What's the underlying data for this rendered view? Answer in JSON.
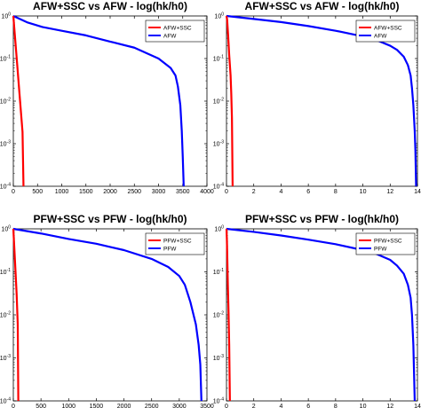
{
  "chart_data": [
    {
      "type": "line",
      "title": "AFW+SSC vs AFW - log(hk/h0)",
      "xlabel": "",
      "ylabel": "",
      "xlim": [
        0,
        4000
      ],
      "ylim": [
        0.0001,
        1
      ],
      "yscale": "log",
      "xticks": [
        0,
        500,
        1000,
        1500,
        2000,
        2500,
        3000,
        3500,
        4000
      ],
      "xtick_labels": [
        "0",
        "500",
        "1000",
        "1500",
        "2000",
        "2500",
        "3000",
        "3500",
        "4000"
      ],
      "yticks": [
        1,
        0.1,
        0.01,
        0.001,
        0.0001
      ],
      "ytick_labels": [
        "10^0",
        "10^-1",
        "10^-2",
        "10^-3",
        "10^-4"
      ],
      "legend_position": "top-right",
      "grid": false,
      "series": [
        {
          "name": "AFW+SSC",
          "color": "#ff0000",
          "x": [
            0,
            40,
            80,
            120,
            160,
            190,
            210
          ],
          "y": [
            1,
            0.27,
            0.072,
            0.019,
            0.0051,
            0.0019,
            0.0001
          ]
        },
        {
          "name": "AFW",
          "color": "#0000ff",
          "x": [
            0,
            300,
            600,
            1000,
            1500,
            2000,
            2500,
            3000,
            3250,
            3350,
            3400,
            3450,
            3480,
            3500,
            3520
          ],
          "y": [
            1,
            0.7,
            0.55,
            0.45,
            0.35,
            0.25,
            0.18,
            0.1,
            0.06,
            0.04,
            0.022,
            0.008,
            0.002,
            0.0005,
            0.0001
          ]
        }
      ]
    },
    {
      "type": "line",
      "title": "AFW+SSC vs AFW - log(hk/h0)",
      "xlabel": "",
      "ylabel": "",
      "xlim": [
        0,
        14
      ],
      "ylim": [
        0.0001,
        1
      ],
      "yscale": "log",
      "xticks": [
        0,
        2,
        4,
        6,
        8,
        10,
        12,
        14
      ],
      "xtick_labels": [
        "0",
        "2",
        "4",
        "6",
        "8",
        "10",
        "12",
        "14"
      ],
      "yticks": [
        1,
        0.1,
        0.01,
        0.001,
        0.0001
      ],
      "ytick_labels": [
        "10^0",
        "10^-1",
        "10^-2",
        "10^-3",
        "10^-4"
      ],
      "legend_position": "top-right",
      "grid": false,
      "series": [
        {
          "name": "AFW+SSC",
          "color": "#ff0000",
          "x": [
            0,
            0.05,
            0.12,
            0.2,
            0.3,
            0.35,
            0.4,
            0.45
          ],
          "y": [
            1,
            0.8,
            0.35,
            0.12,
            0.04,
            0.015,
            0.004,
            0.0001
          ]
        },
        {
          "name": "AFW",
          "color": "#0000ff",
          "x": [
            0,
            2,
            4,
            6,
            8,
            10,
            11,
            12,
            12.5,
            13,
            13.3,
            13.5,
            13.6,
            13.7,
            13.8,
            13.85,
            13.9
          ],
          "y": [
            1,
            0.85,
            0.72,
            0.58,
            0.45,
            0.33,
            0.27,
            0.2,
            0.16,
            0.11,
            0.07,
            0.04,
            0.02,
            0.008,
            0.002,
            0.0007,
            0.0001
          ]
        }
      ]
    },
    {
      "type": "line",
      "title": "PFW+SSC vs PFW - log(hk/h0)",
      "xlabel": "",
      "ylabel": "",
      "xlim": [
        0,
        3500
      ],
      "ylim": [
        0.0001,
        1
      ],
      "yscale": "log",
      "xticks": [
        0,
        500,
        1000,
        1500,
        2000,
        2500,
        3000,
        3500
      ],
      "xtick_labels": [
        "0",
        "500",
        "1000",
        "1500",
        "2000",
        "2500",
        "3000",
        "3500"
      ],
      "yticks": [
        1,
        0.1,
        0.01,
        0.001,
        0.0001
      ],
      "ytick_labels": [
        "10^0",
        "10^-1",
        "10^-2",
        "10^-3",
        "10^-4"
      ],
      "legend_position": "top-right",
      "grid": false,
      "series": [
        {
          "name": "PFW+SSC",
          "color": "#ff0000",
          "x": [
            0,
            20,
            40,
            60,
            80,
            90
          ],
          "y": [
            1,
            0.32,
            0.1,
            0.03,
            0.006,
            0.0001
          ]
        },
        {
          "name": "PFW",
          "color": "#0000ff",
          "x": [
            0,
            500,
            1000,
            1500,
            2000,
            2500,
            2800,
            3000,
            3100,
            3200,
            3300,
            3350,
            3380,
            3400
          ],
          "y": [
            1,
            0.78,
            0.58,
            0.45,
            0.32,
            0.2,
            0.13,
            0.08,
            0.05,
            0.02,
            0.006,
            0.002,
            0.0007,
            0.0001
          ]
        }
      ]
    },
    {
      "type": "line",
      "title": "PFW+SSC vs PFW - log(hk/h0)",
      "xlabel": "",
      "ylabel": "",
      "xlim": [
        0,
        14
      ],
      "ylim": [
        0.0001,
        1
      ],
      "yscale": "log",
      "xticks": [
        0,
        2,
        4,
        6,
        8,
        10,
        12,
        14
      ],
      "xtick_labels": [
        "0",
        "2",
        "4",
        "6",
        "8",
        "10",
        "12",
        "14"
      ],
      "yticks": [
        1,
        0.1,
        0.01,
        0.001,
        0.0001
      ],
      "ytick_labels": [
        "10^0",
        "10^-1",
        "10^-2",
        "10^-3",
        "10^-4"
      ],
      "legend_position": "top-right",
      "grid": false,
      "series": [
        {
          "name": "PFW+SSC",
          "color": "#ff0000",
          "x": [
            0,
            0.03,
            0.07,
            0.1,
            0.15,
            0.2,
            0.25
          ],
          "y": [
            1,
            0.55,
            0.15,
            0.05,
            0.012,
            0.002,
            0.0001
          ]
        },
        {
          "name": "PFW",
          "color": "#0000ff",
          "x": [
            0,
            2,
            4,
            6,
            8,
            10,
            11,
            12,
            12.5,
            13,
            13.3,
            13.5,
            13.6,
            13.7,
            13.8
          ],
          "y": [
            1,
            0.85,
            0.7,
            0.56,
            0.44,
            0.32,
            0.26,
            0.19,
            0.14,
            0.09,
            0.05,
            0.025,
            0.01,
            0.002,
            0.0001
          ]
        }
      ]
    }
  ]
}
